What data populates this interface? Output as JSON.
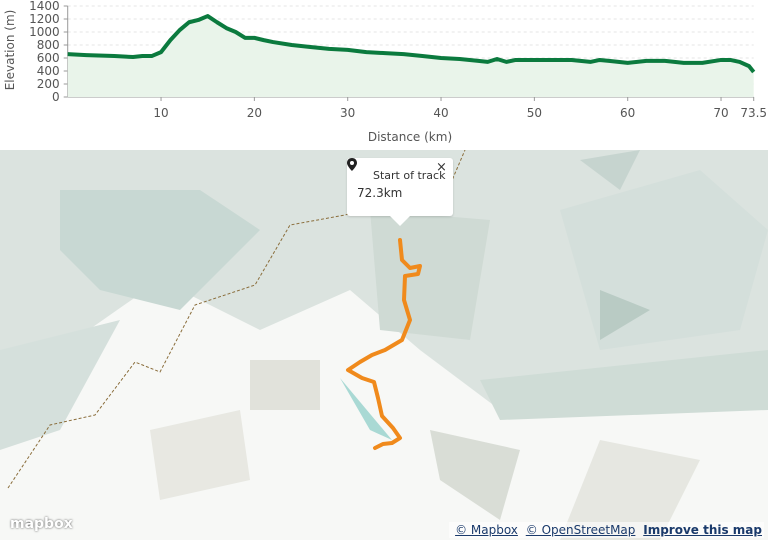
{
  "chart_data": {
    "type": "area",
    "y_label": "Elevation (m)",
    "x_label": "Distance (km)",
    "x": [
      0,
      2,
      5,
      7,
      8,
      9,
      10,
      11,
      12,
      13,
      14,
      15,
      16,
      17,
      18,
      19,
      20,
      21,
      22,
      24,
      26,
      28,
      30,
      32,
      34,
      36,
      38,
      40,
      42,
      44,
      45,
      46,
      47,
      48,
      50,
      52,
      54,
      56,
      57,
      58,
      60,
      62,
      64,
      66,
      68,
      70,
      71,
      72,
      73,
      73.5
    ],
    "values": [
      660,
      645,
      630,
      615,
      630,
      630,
      690,
      875,
      1030,
      1150,
      1185,
      1245,
      1150,
      1060,
      1000,
      910,
      910,
      875,
      845,
      800,
      770,
      740,
      725,
      690,
      675,
      660,
      630,
      600,
      585,
      555,
      540,
      585,
      540,
      570,
      570,
      570,
      570,
      540,
      570,
      555,
      525,
      555,
      555,
      525,
      525,
      570,
      570,
      540,
      475,
      385
    ],
    "color": "#0b7a3e",
    "xlim": [
      0,
      73.5
    ],
    "xticks": [
      10,
      20,
      30,
      40,
      50,
      60,
      70,
      73.5
    ],
    "ylim": [
      0,
      1400
    ],
    "yticks": [
      0,
      200,
      400,
      600,
      800,
      1000,
      1200,
      1400
    ],
    "grid": true
  },
  "map": {
    "popup": {
      "title": "Start of track",
      "distance": "72.3km",
      "close": "×"
    },
    "logo": "mapbox",
    "attribution": [
      "© Mapbox",
      "© OpenStreetMap",
      "Improve this map"
    ]
  }
}
